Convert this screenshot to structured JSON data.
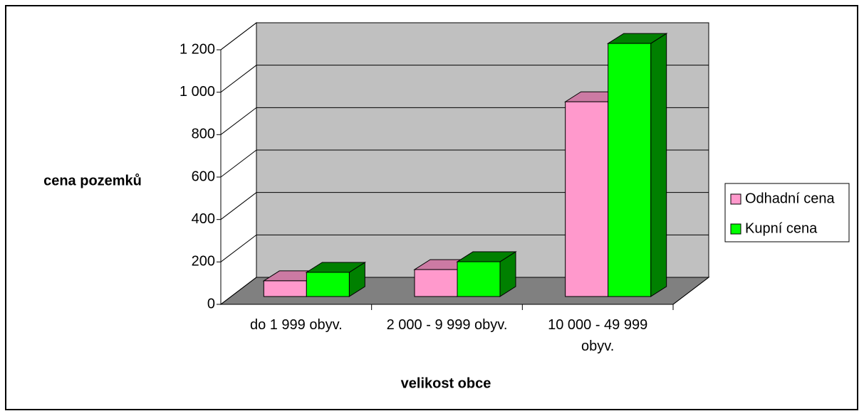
{
  "chart_data": {
    "type": "bar3d",
    "y_label": "cena pozemků",
    "x_label": "velikost obce",
    "categories": [
      "do 1 999 obyv.",
      "2 000 - 9 999 obyv.",
      "10 000 - 49 999 obyv."
    ],
    "series": [
      {
        "name": "Odhadní cena",
        "color": "#ff99cc",
        "side": "#cc7aa3",
        "values": [
          74,
          127,
          918
        ]
      },
      {
        "name": "Kupní cena",
        "color": "#00ff00",
        "side": "#008000",
        "values": [
          114,
          164,
          1193
        ]
      }
    ],
    "ylim": [
      0,
      1200
    ],
    "yticks": [
      0,
      200,
      400,
      600,
      800,
      {
        "value": 1000,
        "label": "1 000"
      },
      {
        "value": 1200,
        "label": "1 200"
      }
    ],
    "grid": true,
    "legend": "right"
  }
}
